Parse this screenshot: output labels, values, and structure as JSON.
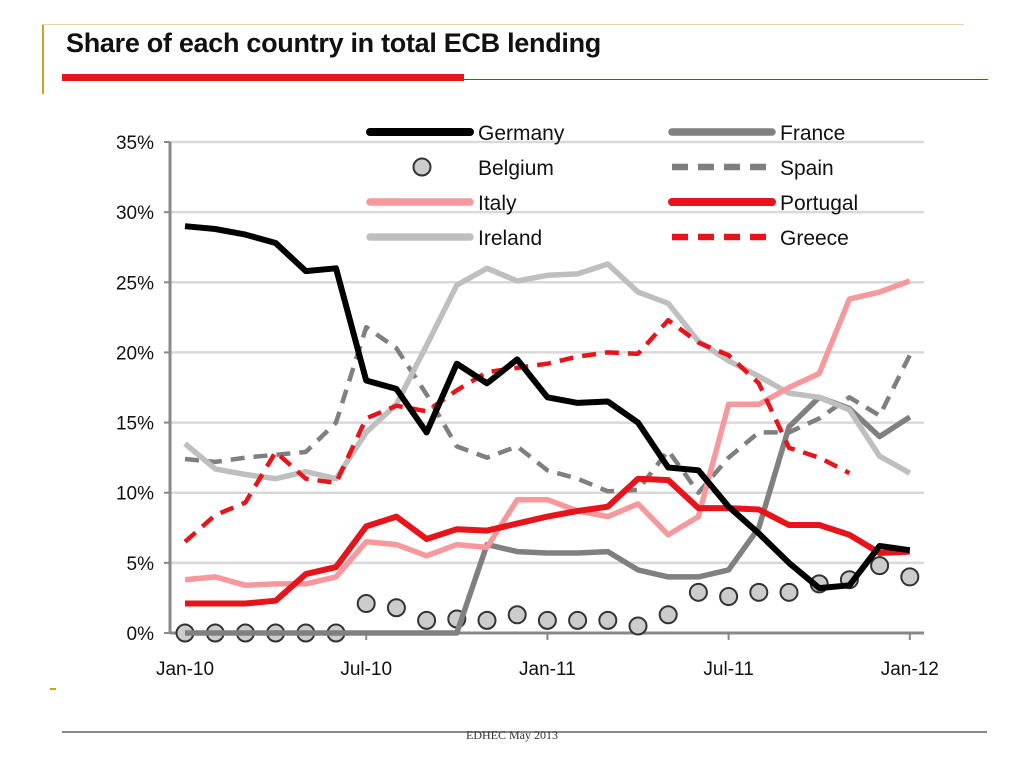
{
  "slide": {
    "title": "Share of each country in total ECB lending",
    "footer": "EDHEC May 2013"
  },
  "chart_data": {
    "type": "line",
    "title": "",
    "xlabel": "",
    "ylabel": "",
    "ylim": [
      0,
      35
    ],
    "y_ticks": [
      "0%",
      "5%",
      "10%",
      "15%",
      "20%",
      "25%",
      "30%",
      "35%"
    ],
    "x_ticks": [
      "Jan-10",
      "Jul-10",
      "Jan-11",
      "Jul-11",
      "Jan-12"
    ],
    "x_months": [
      "2010-01",
      "2010-02",
      "2010-03",
      "2010-04",
      "2010-05",
      "2010-06",
      "2010-07",
      "2010-08",
      "2010-09",
      "2010-10",
      "2010-11",
      "2010-12",
      "2011-01",
      "2011-02",
      "2011-03",
      "2011-04",
      "2011-05",
      "2011-06",
      "2011-07",
      "2011-08",
      "2011-09",
      "2011-10",
      "2011-11",
      "2011-12",
      "2012-01"
    ],
    "grid": true,
    "legend_position": "top",
    "series": [
      {
        "name": "Germany",
        "color": "#000000",
        "style": "solid-thick",
        "values": [
          29.0,
          28.8,
          28.4,
          27.8,
          25.8,
          26.0,
          18.0,
          17.4,
          14.3,
          19.2,
          17.8,
          19.5,
          16.8,
          16.4,
          16.5,
          15.0,
          11.8,
          11.6,
          9.0,
          7.1,
          5.0,
          3.2,
          3.4,
          6.2,
          5.9
        ]
      },
      {
        "name": "Belgium",
        "color": "#cccccc",
        "style": "circle-markers",
        "values": [
          0.0,
          0.0,
          0.0,
          0.0,
          0.0,
          0.0,
          2.1,
          1.8,
          0.9,
          1.0,
          0.9,
          1.3,
          0.9,
          0.9,
          0.9,
          0.5,
          1.3,
          2.9,
          2.6,
          2.9,
          2.9,
          3.5,
          3.8,
          4.8,
          4.0
        ]
      },
      {
        "name": "Italy",
        "color": "#f7999c",
        "style": "solid",
        "values": [
          3.8,
          4.0,
          3.4,
          3.5,
          3.5,
          4.0,
          6.5,
          6.3,
          5.5,
          6.3,
          6.1,
          9.5,
          9.5,
          8.7,
          8.3,
          9.2,
          7.0,
          8.3,
          16.3,
          16.3,
          17.5,
          18.5,
          23.8,
          24.3,
          25.1
        ]
      },
      {
        "name": "Ireland",
        "color": "#bfbfbf",
        "style": "solid",
        "values": [
          13.5,
          11.7,
          11.3,
          11.0,
          11.5,
          11.0,
          14.3,
          16.3,
          20.5,
          24.8,
          26.0,
          25.1,
          25.5,
          25.6,
          26.3,
          24.3,
          23.5,
          20.8,
          19.4,
          18.3,
          17.1,
          16.8,
          15.9,
          12.6,
          11.4
        ]
      },
      {
        "name": "France",
        "color": "#808080",
        "style": "solid",
        "values": [
          0.0,
          0.0,
          0.0,
          0.0,
          0.0,
          0.0,
          0.0,
          0.0,
          0.0,
          0.0,
          6.3,
          5.8,
          5.7,
          5.7,
          5.8,
          4.5,
          4.0,
          4.0,
          4.5,
          7.5,
          14.7,
          16.8,
          16.0,
          14.0,
          15.4
        ]
      },
      {
        "name": "Spain",
        "color": "#7f7f7f",
        "style": "dashed",
        "values": [
          12.4,
          12.2,
          12.5,
          12.7,
          12.9,
          15.0,
          21.8,
          20.3,
          17.0,
          13.3,
          12.5,
          13.3,
          11.6,
          11.0,
          10.1,
          10.2,
          13.0,
          10.0,
          12.5,
          14.3,
          14.3,
          15.3,
          16.8,
          15.5,
          19.8
        ]
      },
      {
        "name": "Portugal",
        "color": "#e8141b",
        "style": "solid-thick",
        "values": [
          2.1,
          2.1,
          2.1,
          2.3,
          4.2,
          4.7,
          7.6,
          8.3,
          6.7,
          7.4,
          7.3,
          7.8,
          8.3,
          8.7,
          9.0,
          11.0,
          10.9,
          8.9,
          8.9,
          8.8,
          7.7,
          7.7,
          7.0,
          5.7,
          5.8
        ]
      },
      {
        "name": "Greece",
        "color": "#e8141b",
        "style": "dashed",
        "values": [
          6.5,
          8.4,
          9.3,
          12.9,
          11.0,
          10.7,
          15.3,
          16.2,
          15.8,
          17.3,
          18.6,
          18.9,
          19.2,
          19.7,
          20.0,
          19.9,
          22.3,
          20.7,
          19.8,
          17.8,
          13.2,
          12.5,
          11.4,
          null,
          null
        ]
      }
    ]
  }
}
